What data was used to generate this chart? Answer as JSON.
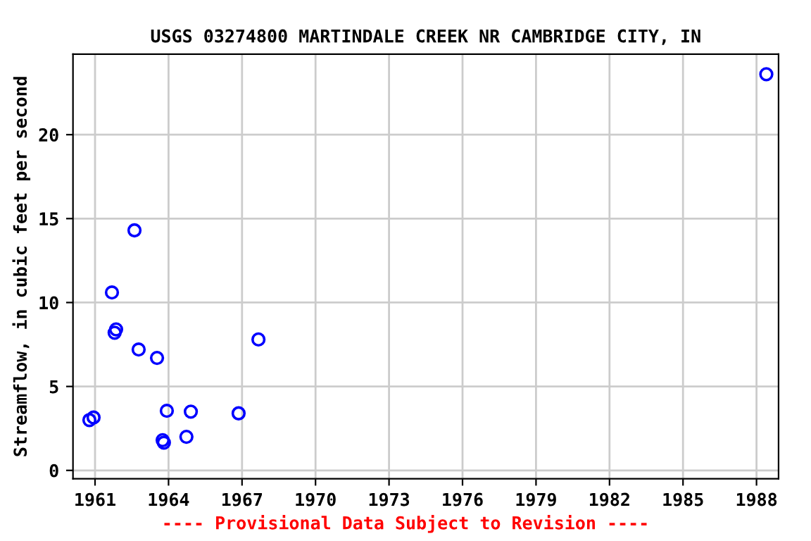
{
  "chart_data": {
    "type": "scatter",
    "title": "USGS 03274800 MARTINDALE CREEK NR CAMBRIDGE CITY, IN",
    "ylabel": "Streamflow, in cubic feet per second",
    "annotations": [
      "---- Provisional Data Subject to Revision ----"
    ],
    "x": [
      1960.77,
      1960.94,
      1961.69,
      1961.8,
      1961.86,
      1962.61,
      1962.78,
      1963.53,
      1963.76,
      1963.81,
      1963.93,
      1964.73,
      1964.91,
      1966.86,
      1967.67,
      1988.4
    ],
    "series": [
      {
        "color": "#0000ff",
        "values": [
          3.0,
          3.15,
          10.6,
          8.2,
          8.4,
          14.3,
          7.2,
          6.7,
          1.8,
          1.65,
          3.55,
          2.0,
          3.5,
          3.4,
          7.8,
          23.6
        ]
      }
    ],
    "xlim": [
      1960.1,
      1988.9
    ],
    "ylim": [
      -0.5,
      24.8
    ],
    "xticks": [
      1961,
      1964,
      1967,
      1970,
      1973,
      1976,
      1979,
      1982,
      1985,
      1988
    ],
    "yticks": [
      0,
      5,
      10,
      15,
      20
    ],
    "grid": true,
    "marker": "circle"
  }
}
